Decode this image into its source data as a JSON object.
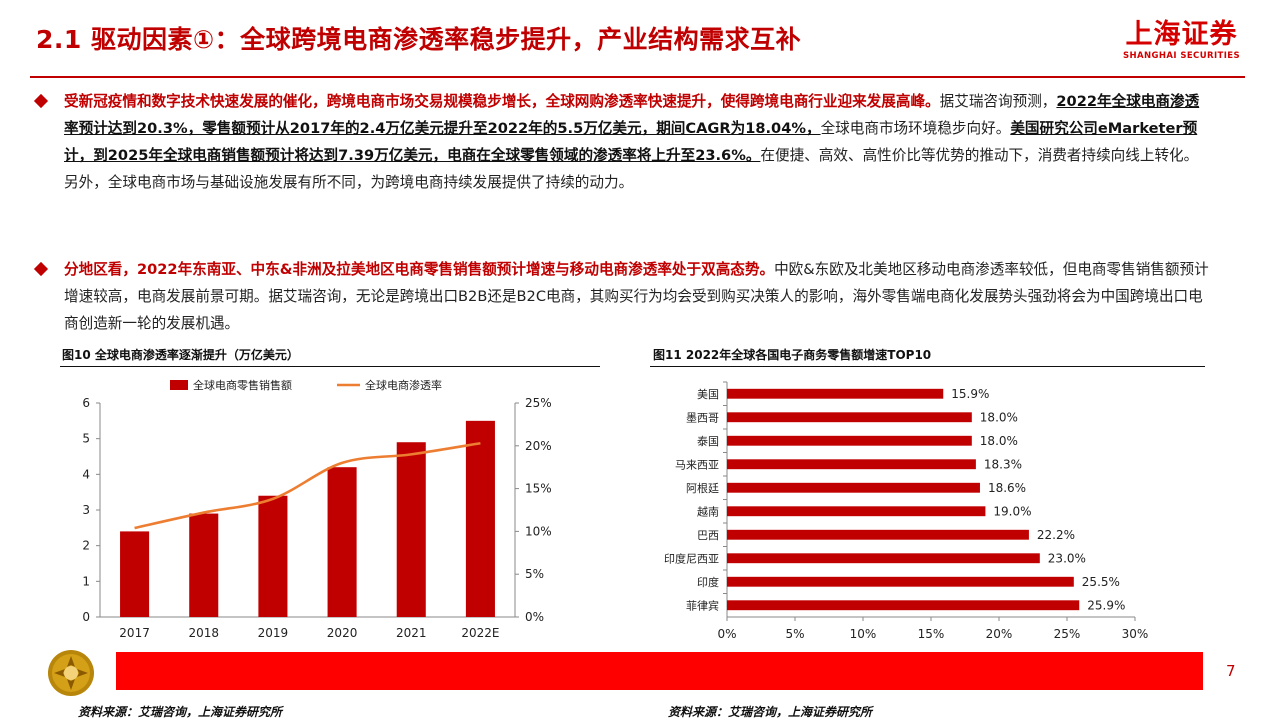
{
  "header": {
    "title": "2.1 驱动因素①：全球跨境电商渗透率稳步提升，产业结构需求互补",
    "logo_cn": "上海证券",
    "logo_en": "SHANGHAI SECURITIES"
  },
  "para1": {
    "lead": "受新冠疫情和数字技术快速发展的催化，跨境电商市场交易规模稳步增长，全球网购渗透率快速提升，使得跨境电商行业迎来发展高峰。",
    "s1": "据艾瑞咨询预测，",
    "b1": "2022年全球电商渗透率预计达到20.3%，零售额预计从2017年的2.4万亿美元提升至2022年的5.5万亿美元，期间CAGR为18.04%，",
    "s2": "全球电商市场环境稳步向好。",
    "b2": "美国研究公司eMarketer预计，到2025年全球电商销售额预计将达到7.39万亿美元，电商在全球零售领域的渗透率将上升至23.6%。",
    "s3": "在便捷、高效、高性价比等优势的推动下，消费者持续向线上转化。另外，全球电商市场与基础设施发展有所不同，为跨境电商持续发展提供了持续的动力。"
  },
  "para2": {
    "lead": "分地区看，2022年东南亚、中东&非洲及拉美地区电商零售销售额预计增速与移动电商渗透率处于双高态势。",
    "rest": "中欧&东欧及北美地区移动电商渗透率较低，但电商零售销售额预计增速较高，电商发展前景可期。据艾瑞咨询，无论是跨境出口B2B还是B2C电商，其购买行为均会受到购买决策人的影响，海外零售端电商化发展势头强劲将会为中国跨境出口电商创造新一轮的发展机遇。"
  },
  "fig10": {
    "title": "图10 全球电商渗透率逐渐提升（万亿美元）",
    "source": "资料来源：艾瑞咨询，上海证券研究所"
  },
  "fig11": {
    "title": "图11 2022年全球各国电子商务零售额增速TOP10",
    "source": "资料来源：艾瑞咨询，上海证券研究所"
  },
  "footer": {
    "page": "7"
  },
  "colors": {
    "brand_red": "#c00000",
    "bar_red": "#c00000",
    "line_orange": "#ed7d31",
    "footer_red": "#ff0000"
  },
  "chart_data": [
    {
      "type": "bar+line",
      "categories": [
        "2017",
        "2018",
        "2019",
        "2020",
        "2021",
        "2022E"
      ],
      "series": [
        {
          "name": "全球电商零售销售额",
          "type": "bar",
          "axis": "left",
          "values": [
            2.4,
            2.9,
            3.4,
            4.2,
            4.9,
            5.5
          ]
        },
        {
          "name": "全球电商渗透率",
          "type": "line",
          "axis": "right",
          "values": [
            10.4,
            12.2,
            13.8,
            18.0,
            19.0,
            20.3
          ]
        }
      ],
      "y_left": {
        "min": 0,
        "max": 6,
        "ticks": [
          "0",
          "1",
          "2",
          "3",
          "4",
          "5",
          "6"
        ]
      },
      "y_right": {
        "min": 0,
        "max": 25,
        "ticks": [
          "0%",
          "5%",
          "10%",
          "15%",
          "20%",
          "25%"
        ]
      },
      "legend_position": "top",
      "grid": false
    },
    {
      "type": "bar",
      "orientation": "horizontal",
      "categories": [
        "美国",
        "墨西哥",
        "泰国",
        "马来西亚",
        "阿根廷",
        "越南",
        "巴西",
        "印度尼西亚",
        "印度",
        "菲律宾"
      ],
      "values": [
        15.9,
        18.0,
        18.0,
        18.3,
        18.6,
        19.0,
        22.2,
        23.0,
        25.5,
        25.9
      ],
      "value_labels": [
        "15.9%",
        "18.0%",
        "18.0%",
        "18.3%",
        "18.6%",
        "19.0%",
        "22.2%",
        "23.0%",
        "25.5%",
        "25.9%"
      ],
      "x_axis": {
        "min": 0,
        "max": 30,
        "ticks": [
          "0%",
          "5%",
          "10%",
          "15%",
          "20%",
          "25%",
          "30%"
        ]
      },
      "grid": false
    }
  ]
}
